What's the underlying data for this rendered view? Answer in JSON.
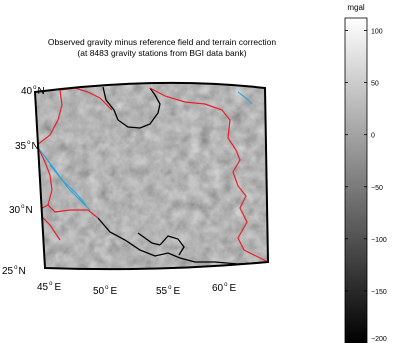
{
  "title": {
    "line1": "Observed gravity minus reference field and terrain correction",
    "line2": "(at 8483 gravity stations from BGI data bank)"
  },
  "map": {
    "lat_labels": [
      {
        "deg": "40",
        "hemi": "N"
      },
      {
        "deg": "35",
        "hemi": "N"
      },
      {
        "deg": "30",
        "hemi": "N"
      },
      {
        "deg": "25",
        "hemi": "N"
      }
    ],
    "lon_labels": [
      {
        "deg": "45",
        "hemi": "E"
      },
      {
        "deg": "50",
        "hemi": "E"
      },
      {
        "deg": "55",
        "hemi": "E"
      },
      {
        "deg": "60",
        "hemi": "E"
      }
    ],
    "colors": {
      "frame": "#000000",
      "borders": "#e8202a",
      "coastline": "#000000",
      "rivers": "#27a6de"
    }
  },
  "colorbar": {
    "unit": "mgal",
    "ticks": [
      "100",
      "50",
      "0",
      "−50",
      "−100",
      "−150",
      "−200"
    ],
    "range": [
      -200,
      112
    ],
    "colormap": "gray"
  }
}
